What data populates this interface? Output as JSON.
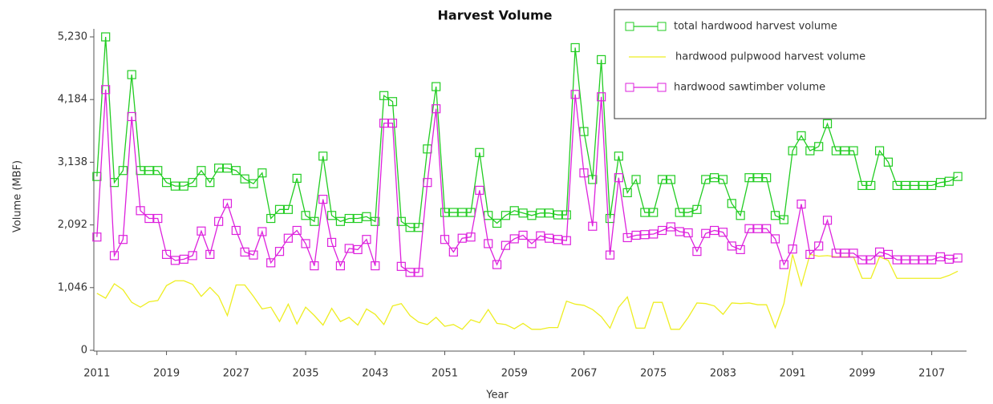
{
  "chart_data": {
    "type": "line",
    "title": "Harvest Volume",
    "xlabel": "Year",
    "ylabel": "Volume (MBF)",
    "x": [
      2011,
      2012,
      2013,
      2014,
      2015,
      2016,
      2017,
      2018,
      2019,
      2020,
      2021,
      2022,
      2023,
      2024,
      2025,
      2026,
      2027,
      2028,
      2029,
      2030,
      2031,
      2032,
      2033,
      2034,
      2035,
      2036,
      2037,
      2038,
      2039,
      2040,
      2041,
      2042,
      2043,
      2044,
      2045,
      2046,
      2047,
      2048,
      2049,
      2050,
      2051,
      2052,
      2053,
      2054,
      2055,
      2056,
      2057,
      2058,
      2059,
      2060,
      2061,
      2062,
      2063,
      2064,
      2065,
      2066,
      2067,
      2068,
      2069,
      2070,
      2071,
      2072,
      2073,
      2074,
      2075,
      2076,
      2077,
      2078,
      2079,
      2080,
      2081,
      2082,
      2083,
      2084,
      2085,
      2086,
      2087,
      2088,
      2089,
      2090,
      2091,
      2092,
      2093,
      2094,
      2095,
      2096,
      2097,
      2098,
      2099,
      2100,
      2101,
      2102,
      2103,
      2104,
      2105,
      2106,
      2107,
      2108,
      2109,
      2110
    ],
    "series": [
      {
        "name": "total hardwood harvest volume",
        "color": "#22cc22",
        "marker": "square",
        "values": [
          2900,
          5230,
          2800,
          3000,
          4600,
          3000,
          3000,
          3000,
          2800,
          2740,
          2740,
          2800,
          3000,
          2800,
          3040,
          3040,
          3000,
          2860,
          2780,
          2960,
          2200,
          2350,
          2350,
          2870,
          2250,
          2150,
          3240,
          2250,
          2150,
          2200,
          2200,
          2230,
          2150,
          4250,
          4150,
          2150,
          2050,
          2050,
          3360,
          4400,
          2300,
          2300,
          2300,
          2300,
          3300,
          2250,
          2120,
          2250,
          2330,
          2290,
          2250,
          2290,
          2290,
          2260,
          2260,
          5050,
          3650,
          2850,
          4850,
          2200,
          3240,
          2630,
          2850,
          2300,
          2300,
          2850,
          2850,
          2300,
          2300,
          2350,
          2850,
          2880,
          2850,
          2450,
          2250,
          2880,
          2880,
          2880,
          2250,
          2180,
          3330,
          3580,
          3330,
          3400,
          3780,
          3330,
          3330,
          3330,
          2750,
          2750,
          3330,
          3140,
          2750,
          2750,
          2750,
          2750,
          2750,
          2800,
          2820,
          2900
        ]
      },
      {
        "name": "hardwood pulpwood harvest volume",
        "color": "#eeee22",
        "marker": "none",
        "values": [
          950,
          870,
          1110,
          1010,
          800,
          720,
          810,
          830,
          1080,
          1160,
          1160,
          1100,
          900,
          1050,
          900,
          580,
          1090,
          1090,
          900,
          690,
          720,
          480,
          770,
          440,
          720,
          580,
          420,
          700,
          480,
          550,
          420,
          690,
          600,
          430,
          740,
          780,
          580,
          470,
          430,
          550,
          400,
          430,
          350,
          510,
          460,
          680,
          450,
          430,
          360,
          450,
          350,
          350,
          380,
          380,
          820,
          770,
          750,
          680,
          560,
          370,
          720,
          890,
          370,
          370,
          800,
          800,
          350,
          350,
          550,
          790,
          780,
          740,
          600,
          790,
          780,
          790,
          760,
          760,
          380,
          780,
          1600,
          1080,
          1600,
          1570,
          1580,
          1560,
          1560,
          1560,
          1200,
          1200,
          1560,
          1500,
          1200,
          1200,
          1200,
          1200,
          1200,
          1200,
          1250,
          1320
        ]
      },
      {
        "name": "hardwood sawtimber volume",
        "color": "#dd22dd",
        "marker": "square",
        "values": [
          1890,
          4350,
          1580,
          1850,
          3900,
          2330,
          2200,
          2200,
          1600,
          1500,
          1520,
          1580,
          1990,
          1600,
          2150,
          2450,
          2000,
          1640,
          1590,
          1980,
          1460,
          1650,
          1870,
          2000,
          1780,
          1410,
          2520,
          1800,
          1410,
          1700,
          1680,
          1850,
          1410,
          3790,
          3790,
          1400,
          1300,
          1300,
          2800,
          4030,
          1850,
          1640,
          1870,
          1890,
          2670,
          1780,
          1430,
          1750,
          1860,
          1920,
          1780,
          1910,
          1870,
          1850,
          1830,
          4270,
          2960,
          2070,
          4230,
          1590,
          2880,
          1880,
          1920,
          1930,
          1940,
          2000,
          2060,
          1980,
          1960,
          1650,
          1950,
          2000,
          1970,
          1740,
          1680,
          2030,
          2030,
          2030,
          1860,
          1430,
          1690,
          2440,
          1600,
          1740,
          2170,
          1620,
          1620,
          1620,
          1510,
          1510,
          1640,
          1600,
          1510,
          1510,
          1510,
          1510,
          1510,
          1560,
          1520,
          1540
        ]
      }
    ],
    "xlim": [
      2010,
      2111
    ],
    "xticks": [
      2011,
      2019,
      2027,
      2035,
      2043,
      2051,
      2059,
      2067,
      2075,
      2083,
      2091,
      2099,
      2107
    ],
    "ylim": [
      0,
      5230
    ],
    "yticks": [
      0,
      {
        "value": 1046,
        "label": "1,046"
      },
      {
        "value": 2092,
        "label": "2,092"
      },
      {
        "value": 3138,
        "label": "3,138"
      },
      {
        "value": 4184,
        "label": "4,184"
      },
      {
        "value": 5230,
        "label": "5,230"
      }
    ],
    "legend": "top-right"
  }
}
